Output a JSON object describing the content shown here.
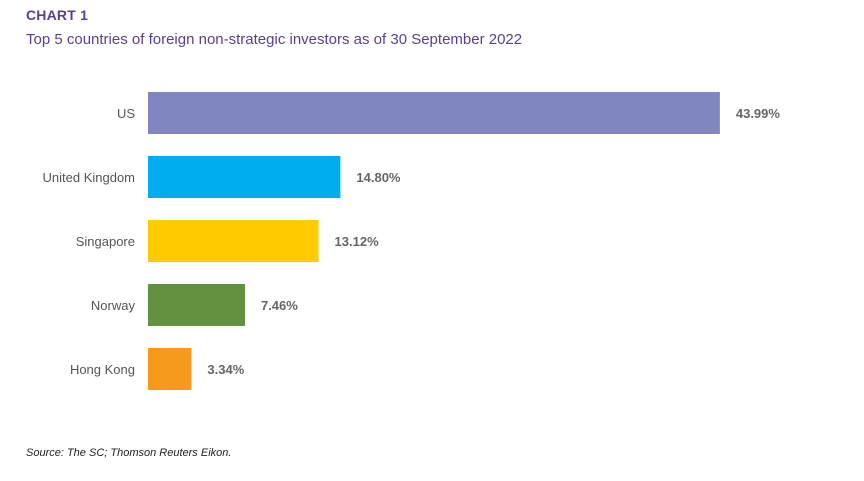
{
  "header": {
    "chart_label": "CHART 1"
  },
  "chart_data": {
    "type": "bar",
    "orientation": "horizontal",
    "title": "Top 5 countries of foreign non-strategic investors as of 30 September 2022",
    "categories": [
      "US",
      "United Kingdom",
      "Singapore",
      "Norway",
      "Hong Kong"
    ],
    "values": [
      43.99,
      14.8,
      13.12,
      7.46,
      3.34
    ],
    "value_labels": [
      "43.99%",
      "14.80%",
      "13.12%",
      "7.46%",
      "3.34%"
    ],
    "colors": [
      "#8087c0",
      "#00aeef",
      "#ffcc00",
      "#62913f",
      "#f7991c"
    ],
    "xlim": [
      0,
      44
    ],
    "grid": false,
    "legend": "none",
    "xlabel": "",
    "ylabel": ""
  },
  "footer": {
    "source": "Source: The SC; Thomson Reuters Eikon."
  }
}
